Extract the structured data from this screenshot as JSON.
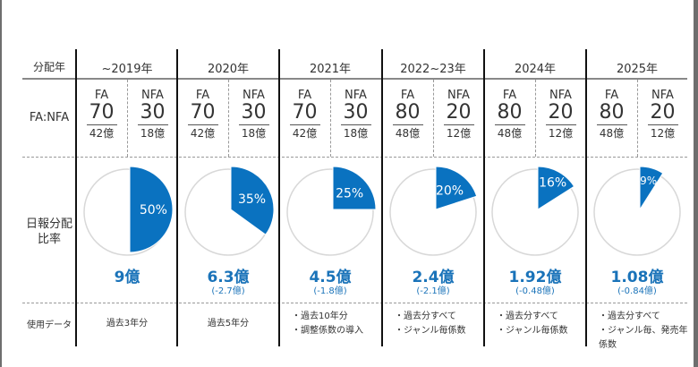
{
  "row_labels": {
    "year": "分配年",
    "ratio": "FA:NFA",
    "daily_share_line1": "日報分配",
    "daily_share_line2": "比率",
    "data_used": "使用データ"
  },
  "colors": {
    "accent": "#0a72c0",
    "pie_bg_stroke": "#d8d8d8",
    "amount_text": "#1a73b9"
  },
  "columns": [
    {
      "year": "~2019年",
      "fa_label": "FA",
      "fa_value": "70",
      "fa_money": "42億",
      "nfa_label": "NFA",
      "nfa_value": "30",
      "nfa_money": "18億",
      "share_pct": 50,
      "share_label": "50%",
      "amount": "9億",
      "delta": "",
      "data_used": [
        "過去3年分"
      ]
    },
    {
      "year": "2020年",
      "fa_label": "FA",
      "fa_value": "70",
      "fa_money": "42億",
      "nfa_label": "NFA",
      "nfa_value": "30",
      "nfa_money": "18億",
      "share_pct": 35,
      "share_label": "35%",
      "amount": "6.3億",
      "delta": "(-2.7億)",
      "data_used": [
        "過去5年分"
      ]
    },
    {
      "year": "2021年",
      "fa_label": "FA",
      "fa_value": "70",
      "fa_money": "42億",
      "nfa_label": "NFA",
      "nfa_value": "30",
      "nfa_money": "18億",
      "share_pct": 25,
      "share_label": "25%",
      "amount": "4.5億",
      "delta": "(-1.8億)",
      "data_used": [
        "・過去10年分",
        "・調整係数の導入"
      ]
    },
    {
      "year": "2022~23年",
      "fa_label": "FA",
      "fa_value": "80",
      "fa_money": "48億",
      "nfa_label": "NFA",
      "nfa_value": "20",
      "nfa_money": "12億",
      "share_pct": 20,
      "share_label": "20%",
      "amount": "2.4億",
      "delta": "(-2.1億)",
      "data_used": [
        "・過去分すべて",
        "・ジャンル毎係数"
      ]
    },
    {
      "year": "2024年",
      "fa_label": "FA",
      "fa_value": "80",
      "fa_money": "48億",
      "nfa_label": "NFA",
      "nfa_value": "20",
      "nfa_money": "12億",
      "share_pct": 16,
      "share_label": "16%",
      "amount": "1.92億",
      "delta": "(-0.48億)",
      "data_used": [
        "・過去分すべて",
        "・ジャンル毎係数"
      ]
    },
    {
      "year": "2025年",
      "fa_label": "FA",
      "fa_value": "80",
      "fa_money": "48億",
      "nfa_label": "NFA",
      "nfa_value": "20",
      "nfa_money": "12億",
      "share_pct": 9,
      "share_label": "9%",
      "amount": "1.08億",
      "delta": "(-0.84億)",
      "data_used": [
        "・過去分すべて",
        "・ジャンル毎、発売年係数"
      ]
    }
  ]
}
